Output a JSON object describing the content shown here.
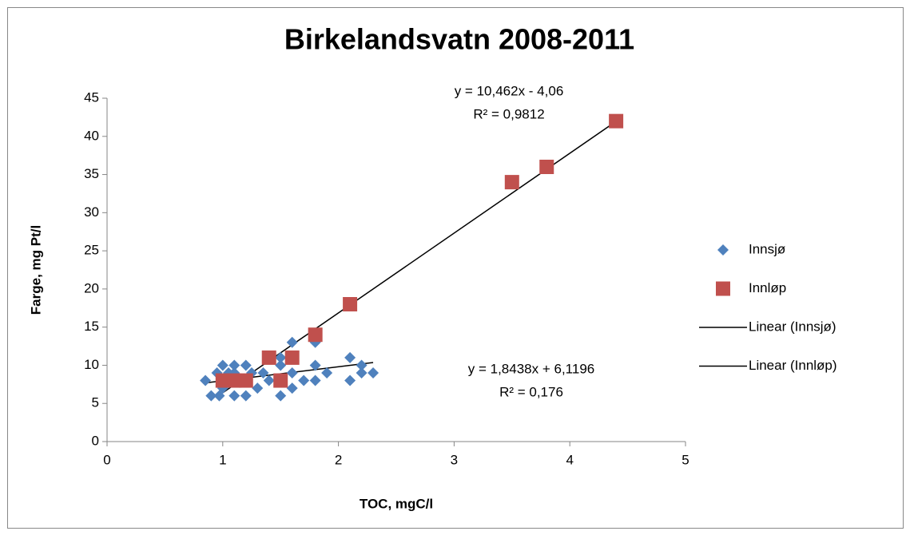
{
  "chart_data": {
    "type": "scatter",
    "title": "Birkelandsvatn 2008-2011",
    "xlabel": "TOC, mgC/l",
    "ylabel": "Farge, mg Pt/l",
    "xlim": [
      0,
      5
    ],
    "xticks": [
      0,
      1,
      2,
      3,
      4,
      5
    ],
    "ylim": [
      0,
      45
    ],
    "yticks": [
      0,
      5,
      10,
      15,
      20,
      25,
      30,
      35,
      40,
      45
    ],
    "grid": false,
    "legend": "right",
    "series": [
      {
        "name": "Innsjø",
        "color": "#4f81bd",
        "marker": "diamond",
        "x": [
          0.85,
          0.9,
          0.95,
          0.97,
          1.0,
          1.0,
          1.0,
          1.05,
          1.1,
          1.1,
          1.1,
          1.15,
          1.2,
          1.2,
          1.25,
          1.3,
          1.35,
          1.4,
          1.5,
          1.5,
          1.5,
          1.6,
          1.6,
          1.6,
          1.7,
          1.8,
          1.8,
          1.8,
          1.9,
          2.1,
          2.1,
          2.2,
          2.2,
          2.3
        ],
        "values": [
          8,
          6,
          9,
          6,
          10,
          8,
          7,
          9,
          10,
          6,
          9,
          8,
          10,
          6,
          9,
          7,
          9,
          8,
          6,
          11,
          10,
          13,
          7,
          9,
          8,
          13,
          10,
          8,
          9,
          11,
          8,
          10,
          9,
          9
        ]
      },
      {
        "name": "Innløp",
        "color": "#c0504d",
        "marker": "square",
        "x": [
          1.0,
          1.1,
          1.2,
          1.4,
          1.5,
          1.6,
          1.8,
          2.1,
          3.5,
          3.8,
          4.4
        ],
        "values": [
          8,
          8,
          8,
          11,
          8,
          11,
          14,
          18,
          34,
          36,
          42
        ]
      },
      {
        "name": "Linear (Innsjø)",
        "color": "#000000",
        "marker": "line",
        "x": [
          0.85,
          2.3
        ],
        "values": [
          7.69,
          10.36
        ]
      },
      {
        "name": "Linear (Innløp)",
        "color": "#000000",
        "marker": "line",
        "x": [
          1.0,
          4.4
        ],
        "values": [
          6.4,
          41.97
        ]
      }
    ],
    "annotations": [
      "y = 10,462x - 4,06",
      "R² = 0,9812",
      "y = 1,8438x + 6,1196",
      "R² = 0,176"
    ]
  }
}
